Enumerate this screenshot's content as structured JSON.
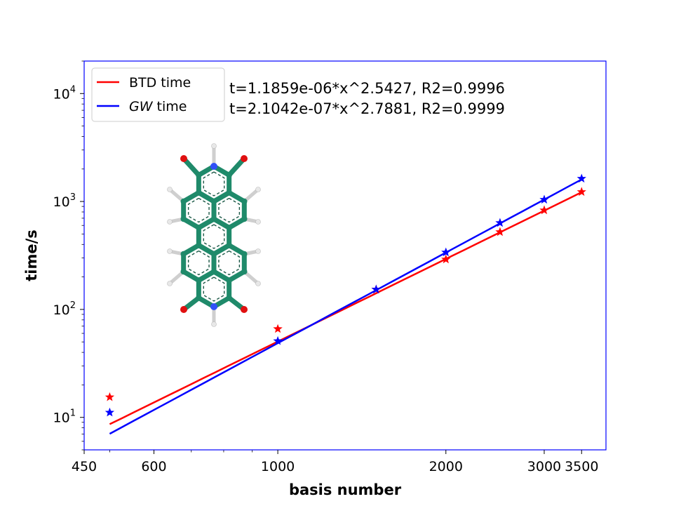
{
  "chart_data": {
    "type": "line",
    "title": "",
    "xlabel": "basis number",
    "ylabel": "time/s",
    "xscale": "log",
    "yscale": "log",
    "xlim": [
      450,
      3870
    ],
    "ylim": [
      5,
      20000
    ],
    "grid": false,
    "legend_placement": "top-left",
    "spine_color": "#0000ff",
    "x_ticks": [
      450,
      600,
      1000,
      2000,
      3000,
      3500
    ],
    "x_tick_labels": [
      "450",
      "600",
      "1000",
      "2000",
      "3000",
      "3500"
    ],
    "x_minor_ticks": [
      500,
      700,
      800,
      900
    ],
    "y_ticks": [
      10,
      100,
      1000,
      10000
    ],
    "y_tick_labels": [
      {
        "base": "10",
        "exp": "1"
      },
      {
        "base": "10",
        "exp": "2"
      },
      {
        "base": "10",
        "exp": "3"
      },
      {
        "base": "10",
        "exp": "4"
      }
    ],
    "x": [
      500,
      1000,
      1500,
      2000,
      2500,
      3000,
      3500
    ],
    "series": [
      {
        "name": "BTD time",
        "color": "#ff0000",
        "marker": "star",
        "values": [
          15.4,
          66,
          153,
          291,
          522,
          830,
          1227
        ],
        "fit": {
          "a": 1.1859e-06,
          "b": 2.5427,
          "r2": 0.9996,
          "x_range": [
            500,
            3500
          ]
        }
      },
      {
        "name": "GW time",
        "name_italic_part": "GW",
        "name_rest": " time",
        "color": "#0000ff",
        "marker": "star",
        "values": [
          11.1,
          51,
          153,
          338,
          634,
          1040,
          1630
        ],
        "fit": {
          "a": 2.1042e-07,
          "b": 2.7881,
          "r2": 0.9999,
          "x_range": [
            500,
            3500
          ]
        }
      }
    ],
    "annotations": [
      "t=1.1859e-06*x^2.5427, R2=0.9996",
      "t=2.1042e-07*x^2.7881, R2=0.9999"
    ],
    "inset": {
      "type": "molecule",
      "colors": {
        "carbon": "#1f8a6a",
        "nitrogen": "#3050f8",
        "oxygen": "#e01010",
        "hydrogen": "#e8e8e8"
      }
    }
  }
}
